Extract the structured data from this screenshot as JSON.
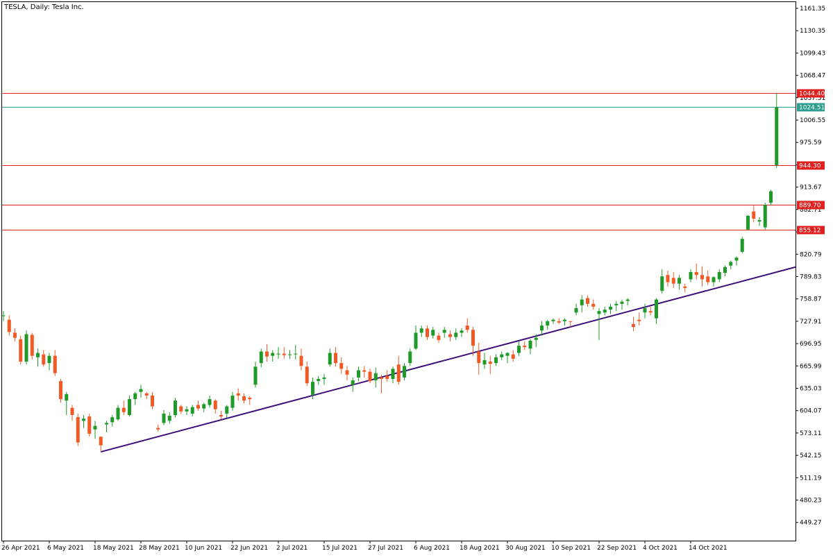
{
  "chart_data": {
    "type": "candlestick",
    "title": "TESLA, Daily:  Tesla Inc.",
    "ylim": [
      424,
      1170
    ],
    "y_ticks": [
      "1161.35",
      "1130.35",
      "1099.43",
      "1068.47",
      "1037.51",
      "1006.55",
      "975.59",
      "944.63",
      "913.67",
      "882.71",
      "851.75",
      "820.79",
      "789.83",
      "758.87",
      "727.91",
      "696.95",
      "665.99",
      "635.03",
      "604.07",
      "573.11",
      "542.15",
      "511.19",
      "480.23",
      "449.27"
    ],
    "x_tick_labels": [
      "26 Apr 2021",
      "6 May 2021",
      "18 May 2021",
      "28 May 2021",
      "10 Jun 2021",
      "22 Jun 2021",
      "2 Jul 2021",
      "15 Jul 2021",
      "27 Jul 2021",
      "6 Aug 2021",
      "18 Aug 2021",
      "30 Aug 2021",
      "10 Sep 2021",
      "22 Sep 2021",
      "4 Oct 2021",
      "14 Oct 2021"
    ],
    "x_tick_index": [
      0,
      8,
      16,
      24,
      32,
      40,
      48,
      56,
      64,
      72,
      80,
      88,
      96,
      104,
      112,
      120
    ],
    "colors": {
      "bull": "#1f9a28",
      "bear": "#f15a24",
      "grid_line": "#000000",
      "resistance": "#e0201e",
      "current": "#2a9d8f",
      "trend": "#3d0f7a"
    },
    "horizontal_levels": [
      {
        "value": 1044.4,
        "label": "1044.40",
        "color": "#e0201e",
        "kind": "resistance"
      },
      {
        "value": 1024.51,
        "label": "1024.51",
        "color": "#2a9d8f",
        "kind": "current"
      },
      {
        "value": 944.3,
        "label": "944.30",
        "color": "#e0201e",
        "kind": "resistance"
      },
      {
        "value": 889.7,
        "label": "889.70",
        "color": "#e0201e",
        "kind": "resistance"
      },
      {
        "value": 855.12,
        "label": "855.12",
        "color": "#e0201e",
        "kind": "resistance"
      }
    ],
    "trendline": {
      "from_index": 17,
      "from_value": 547,
      "to_value": 803
    },
    "candles": [
      [
        735,
        742,
        728,
        736
      ],
      [
        730,
        736,
        708,
        713
      ],
      [
        712,
        718,
        700,
        705
      ],
      [
        703,
        708,
        668,
        672
      ],
      [
        672,
        715,
        668,
        710
      ],
      [
        709,
        712,
        675,
        680
      ],
      [
        678,
        690,
        665,
        684
      ],
      [
        682,
        688,
        665,
        668
      ],
      [
        670,
        684,
        660,
        680
      ],
      [
        680,
        688,
        652,
        656
      ],
      [
        645,
        648,
        615,
        620
      ],
      [
        618,
        630,
        598,
        627
      ],
      [
        608,
        612,
        590,
        598
      ],
      [
        595,
        600,
        555,
        560
      ],
      [
        590,
        598,
        580,
        593
      ],
      [
        596,
        600,
        568,
        572
      ],
      [
        578,
        590,
        565,
        583
      ],
      [
        568,
        568,
        548,
        556
      ],
      [
        585,
        590,
        574,
        587
      ],
      [
        588,
        598,
        582,
        595
      ],
      [
        592,
        612,
        590,
        608
      ],
      [
        608,
        618,
        598,
        602
      ],
      [
        598,
        625,
        596,
        620
      ],
      [
        620,
        630,
        612,
        628
      ],
      [
        630,
        640,
        622,
        634
      ],
      [
        628,
        630,
        620,
        625
      ],
      [
        625,
        630,
        606,
        610
      ],
      [
        580,
        585,
        575,
        578
      ],
      [
        587,
        605,
        584,
        600
      ],
      [
        590,
        602,
        586,
        597
      ],
      [
        598,
        622,
        595,
        618
      ],
      [
        610,
        612,
        600,
        603
      ],
      [
        603,
        610,
        598,
        606
      ],
      [
        600,
        612,
        596,
        609
      ],
      [
        612,
        618,
        604,
        607
      ],
      [
        607,
        615,
        602,
        613
      ],
      [
        612,
        625,
        608,
        620
      ],
      [
        618,
        620,
        600,
        606
      ],
      [
        598,
        604,
        592,
        596
      ],
      [
        600,
        612,
        594,
        610
      ],
      [
        608,
        630,
        604,
        625
      ],
      [
        628,
        635,
        618,
        625
      ],
      [
        624,
        628,
        614,
        618
      ],
      [
        622,
        624,
        612,
        620
      ],
      [
        640,
        672,
        636,
        665
      ],
      [
        670,
        690,
        664,
        686
      ],
      [
        686,
        696,
        672,
        679
      ],
      [
        680,
        688,
        672,
        684
      ],
      [
        682,
        692,
        676,
        683
      ],
      [
        683,
        692,
        676,
        681
      ],
      [
        681,
        688,
        676,
        682
      ],
      [
        682,
        695,
        675,
        683
      ],
      [
        680,
        690,
        660,
        666
      ],
      [
        665,
        672,
        638,
        642
      ],
      [
        626,
        650,
        620,
        644
      ],
      [
        645,
        652,
        640,
        648
      ],
      [
        648,
        655,
        640,
        650
      ],
      [
        668,
        690,
        665,
        684
      ],
      [
        684,
        692,
        665,
        670
      ],
      [
        670,
        678,
        655,
        662
      ],
      [
        660,
        666,
        646,
        654
      ],
      [
        640,
        650,
        630,
        646
      ],
      [
        650,
        665,
        645,
        660
      ],
      [
        660,
        666,
        650,
        658
      ],
      [
        658,
        662,
        642,
        645
      ],
      [
        646,
        664,
        636,
        656
      ],
      [
        650,
        654,
        628,
        648
      ],
      [
        652,
        660,
        644,
        648
      ],
      [
        648,
        665,
        642,
        662
      ],
      [
        668,
        680,
        640,
        644
      ],
      [
        650,
        670,
        646,
        666
      ],
      [
        670,
        690,
        666,
        686
      ],
      [
        690,
        722,
        688,
        712
      ],
      [
        712,
        722,
        706,
        718
      ],
      [
        718,
        722,
        702,
        706
      ],
      [
        708,
        720,
        704,
        716
      ],
      [
        708,
        712,
        698,
        702
      ],
      [
        712,
        720,
        705,
        716
      ],
      [
        710,
        715,
        700,
        706
      ],
      [
        706,
        718,
        702,
        712
      ],
      [
        712,
        718,
        706,
        715
      ],
      [
        722,
        732,
        712,
        716
      ],
      [
        716,
        720,
        680,
        694
      ],
      [
        686,
        698,
        654,
        670
      ],
      [
        668,
        684,
        662,
        674
      ],
      [
        672,
        680,
        655,
        669
      ],
      [
        670,
        682,
        666,
        678
      ],
      [
        678,
        686,
        674,
        682
      ],
      [
        680,
        685,
        670,
        684
      ],
      [
        682,
        688,
        672,
        676
      ],
      [
        684,
        700,
        680,
        694
      ],
      [
        694,
        700,
        688,
        692
      ],
      [
        690,
        703,
        682,
        701
      ],
      [
        702,
        710,
        692,
        705
      ],
      [
        715,
        728,
        708,
        722
      ],
      [
        722,
        730,
        716,
        728
      ],
      [
        728,
        732,
        724,
        730
      ],
      [
        728,
        732,
        724,
        726
      ],
      [
        728,
        732,
        722,
        730
      ],
      [
        728,
        728,
        720,
        727
      ],
      [
        740,
        752,
        736,
        746
      ],
      [
        750,
        764,
        740,
        758
      ],
      [
        760,
        764,
        748,
        752
      ],
      [
        752,
        758,
        744,
        748
      ],
      [
        738,
        746,
        702,
        742
      ],
      [
        740,
        748,
        736,
        744
      ],
      [
        744,
        752,
        738,
        748
      ],
      [
        750,
        756,
        742,
        752
      ],
      [
        752,
        758,
        744,
        755
      ],
      [
        756,
        760,
        750,
        758
      ],
      [
        724,
        734,
        714,
        720
      ],
      [
        730,
        740,
        722,
        728
      ],
      [
        740,
        752,
        732,
        746
      ],
      [
        742,
        748,
        736,
        740
      ],
      [
        732,
        760,
        724,
        758
      ],
      [
        770,
        800,
        766,
        790
      ],
      [
        792,
        798,
        776,
        782
      ],
      [
        788,
        796,
        774,
        780
      ],
      [
        780,
        792,
        772,
        788
      ],
      [
        776,
        780,
        768,
        774
      ],
      [
        786,
        800,
        782,
        796
      ],
      [
        796,
        808,
        786,
        792
      ],
      [
        792,
        804,
        776,
        786
      ],
      [
        790,
        798,
        778,
        782
      ],
      [
        782,
        790,
        776,
        789
      ],
      [
        786,
        800,
        782,
        796
      ],
      [
        795,
        805,
        790,
        803
      ],
      [
        805,
        812,
        800,
        810
      ],
      [
        812,
        818,
        805,
        816
      ],
      [
        824,
        845,
        822,
        842
      ],
      [
        855,
        875,
        854,
        874
      ],
      [
        880,
        888,
        865,
        870
      ],
      [
        866,
        872,
        860,
        868
      ],
      [
        858,
        892,
        855,
        889
      ],
      [
        892,
        910,
        888,
        908
      ],
      [
        944,
        1044,
        940,
        1024
      ]
    ]
  }
}
